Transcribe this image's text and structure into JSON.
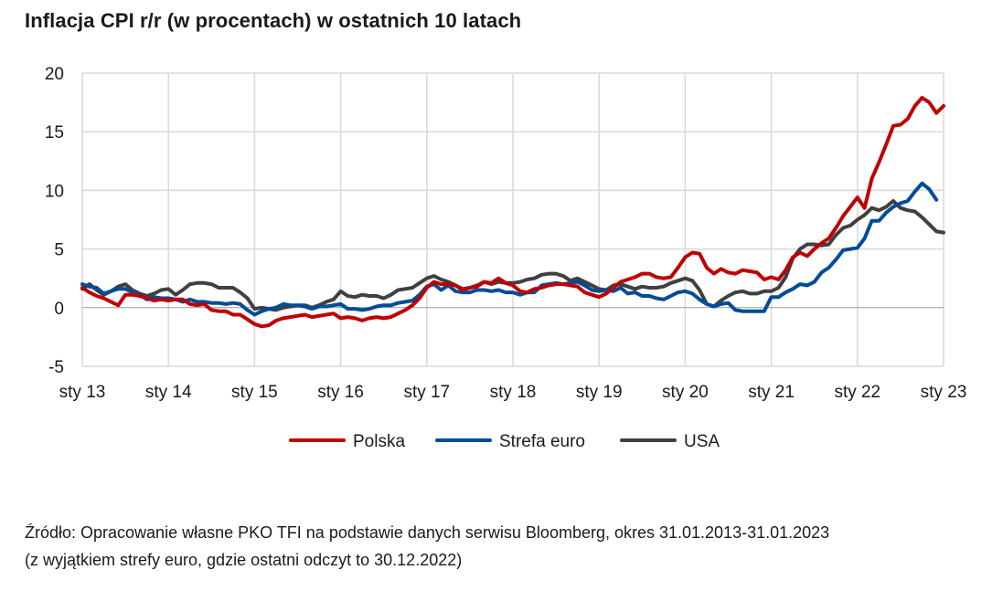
{
  "title": "Inflacja CPI r/r (w procentach) w ostatnich 10 latach",
  "source": {
    "line1": "Źródło: Opracowanie własne PKO TFI na podstawie danych serwisu Bloomberg, okres 31.01.2013-31.01.2023",
    "line2": "(z wyjątkiem strefy euro, gdzie ostatni odczyt to 30.12.2022)"
  },
  "chart_data": {
    "type": "line",
    "title": "Inflacja CPI r/r (w procentach) w ostatnich 10 latach",
    "xlabel": "",
    "ylabel": "",
    "ylim": [
      -5,
      20
    ],
    "yticks": [
      -5,
      0,
      5,
      10,
      15,
      20
    ],
    "grid": true,
    "legend_position": "bottom",
    "x_start": "2013-01",
    "x_end": "2023-01",
    "xticks": [
      {
        "month_index": 0,
        "label": "sty 13"
      },
      {
        "month_index": 12,
        "label": "sty 14"
      },
      {
        "month_index": 24,
        "label": "sty 15"
      },
      {
        "month_index": 36,
        "label": "sty 16"
      },
      {
        "month_index": 48,
        "label": "sty 17"
      },
      {
        "month_index": 60,
        "label": "sty 18"
      },
      {
        "month_index": 72,
        "label": "sty 19"
      },
      {
        "month_index": 84,
        "label": "sty 20"
      },
      {
        "month_index": 96,
        "label": "sty 21"
      },
      {
        "month_index": 108,
        "label": "sty 22"
      },
      {
        "month_index": 120,
        "label": "sty 23"
      }
    ],
    "series": [
      {
        "name": "Polska",
        "color": "#c00000",
        "values": [
          1.7,
          1.3,
          1.0,
          0.8,
          0.5,
          0.2,
          1.1,
          1.1,
          1.0,
          0.8,
          0.6,
          0.7,
          0.6,
          0.7,
          0.7,
          0.3,
          0.2,
          0.3,
          -0.2,
          -0.3,
          -0.3,
          -0.6,
          -0.6,
          -1.0,
          -1.4,
          -1.6,
          -1.5,
          -1.1,
          -0.9,
          -0.8,
          -0.7,
          -0.6,
          -0.8,
          -0.7,
          -0.6,
          -0.5,
          -0.9,
          -0.8,
          -0.9,
          -1.1,
          -0.9,
          -0.8,
          -0.9,
          -0.8,
          -0.5,
          -0.2,
          0.2,
          0.8,
          1.7,
          2.2,
          2.0,
          2.0,
          1.9,
          1.5,
          1.7,
          1.8,
          2.2,
          2.1,
          2.5,
          2.1,
          1.9,
          1.4,
          1.3,
          1.6,
          1.7,
          1.9,
          2.0,
          2.0,
          1.9,
          1.8,
          1.3,
          1.1,
          0.9,
          1.2,
          1.7,
          2.2,
          2.4,
          2.6,
          2.9,
          2.9,
          2.6,
          2.5,
          2.6,
          3.4,
          4.3,
          4.7,
          4.6,
          3.4,
          2.9,
          3.3,
          3.0,
          2.9,
          3.2,
          3.1,
          3.0,
          2.4,
          2.6,
          2.4,
          3.2,
          4.3,
          4.7,
          4.4,
          5.0,
          5.5,
          5.9,
          6.8,
          7.8,
          8.6,
          9.4,
          8.5,
          11.0,
          12.4,
          13.9,
          15.5,
          15.6,
          16.1,
          17.2,
          17.9,
          17.5,
          16.6,
          17.2
        ]
      },
      {
        "name": "Strefa euro",
        "color": "#004c97",
        "values": [
          2.0,
          1.8,
          1.7,
          1.2,
          1.4,
          1.6,
          1.6,
          1.3,
          1.1,
          0.7,
          0.9,
          0.8,
          0.8,
          0.7,
          0.5,
          0.7,
          0.5,
          0.5,
          0.4,
          0.4,
          0.3,
          0.4,
          0.3,
          -0.2,
          -0.6,
          -0.3,
          -0.1,
          0.0,
          0.3,
          0.2,
          0.2,
          0.1,
          -0.1,
          0.1,
          0.1,
          0.2,
          0.3,
          -0.1,
          -0.1,
          -0.2,
          -0.1,
          0.1,
          0.2,
          0.2,
          0.4,
          0.5,
          0.6,
          1.1,
          1.8,
          2.0,
          1.5,
          1.9,
          1.4,
          1.3,
          1.3,
          1.5,
          1.5,
          1.4,
          1.5,
          1.3,
          1.3,
          1.1,
          1.3,
          1.3,
          1.9,
          2.0,
          2.1,
          2.0,
          2.1,
          2.2,
          1.9,
          1.5,
          1.4,
          1.5,
          1.4,
          1.7,
          1.2,
          1.3,
          1.0,
          1.0,
          0.8,
          0.7,
          1.0,
          1.3,
          1.4,
          1.2,
          0.7,
          0.3,
          0.1,
          0.3,
          0.4,
          -0.2,
          -0.3,
          -0.3,
          -0.3,
          -0.3,
          0.9,
          0.9,
          1.3,
          1.6,
          2.0,
          1.9,
          2.2,
          3.0,
          3.4,
          4.1,
          4.9,
          5.0,
          5.1,
          5.9,
          7.4,
          7.4,
          8.1,
          8.6,
          8.9,
          9.1,
          9.9,
          10.6,
          10.1,
          9.2
        ]
      },
      {
        "name": "USA",
        "color": "#404040",
        "values": [
          1.6,
          2.0,
          1.5,
          1.1,
          1.4,
          1.8,
          2.0,
          1.5,
          1.2,
          1.0,
          1.2,
          1.5,
          1.6,
          1.1,
          1.5,
          2.0,
          2.1,
          2.1,
          2.0,
          1.7,
          1.7,
          1.7,
          1.3,
          0.8,
          -0.1,
          0.0,
          -0.1,
          -0.2,
          0.0,
          0.1,
          0.2,
          0.2,
          0.0,
          0.2,
          0.5,
          0.7,
          1.4,
          1.0,
          0.9,
          1.1,
          1.0,
          1.0,
          0.8,
          1.1,
          1.5,
          1.6,
          1.7,
          2.1,
          2.5,
          2.7,
          2.4,
          2.2,
          1.9,
          1.6,
          1.7,
          1.9,
          2.2,
          2.0,
          2.2,
          2.1,
          2.1,
          2.2,
          2.4,
          2.5,
          2.8,
          2.9,
          2.9,
          2.7,
          2.3,
          2.5,
          2.2,
          1.9,
          1.6,
          1.5,
          1.9,
          2.0,
          1.8,
          1.6,
          1.8,
          1.7,
          1.7,
          1.8,
          2.1,
          2.3,
          2.5,
          2.3,
          1.5,
          0.3,
          0.1,
          0.6,
          1.0,
          1.3,
          1.4,
          1.2,
          1.2,
          1.4,
          1.4,
          1.7,
          2.6,
          4.2,
          5.0,
          5.4,
          5.4,
          5.3,
          5.4,
          6.2,
          6.8,
          7.0,
          7.5,
          7.9,
          8.5,
          8.3,
          8.6,
          9.1,
          8.5,
          8.3,
          8.2,
          7.7,
          7.1,
          6.5,
          6.4
        ]
      }
    ]
  }
}
